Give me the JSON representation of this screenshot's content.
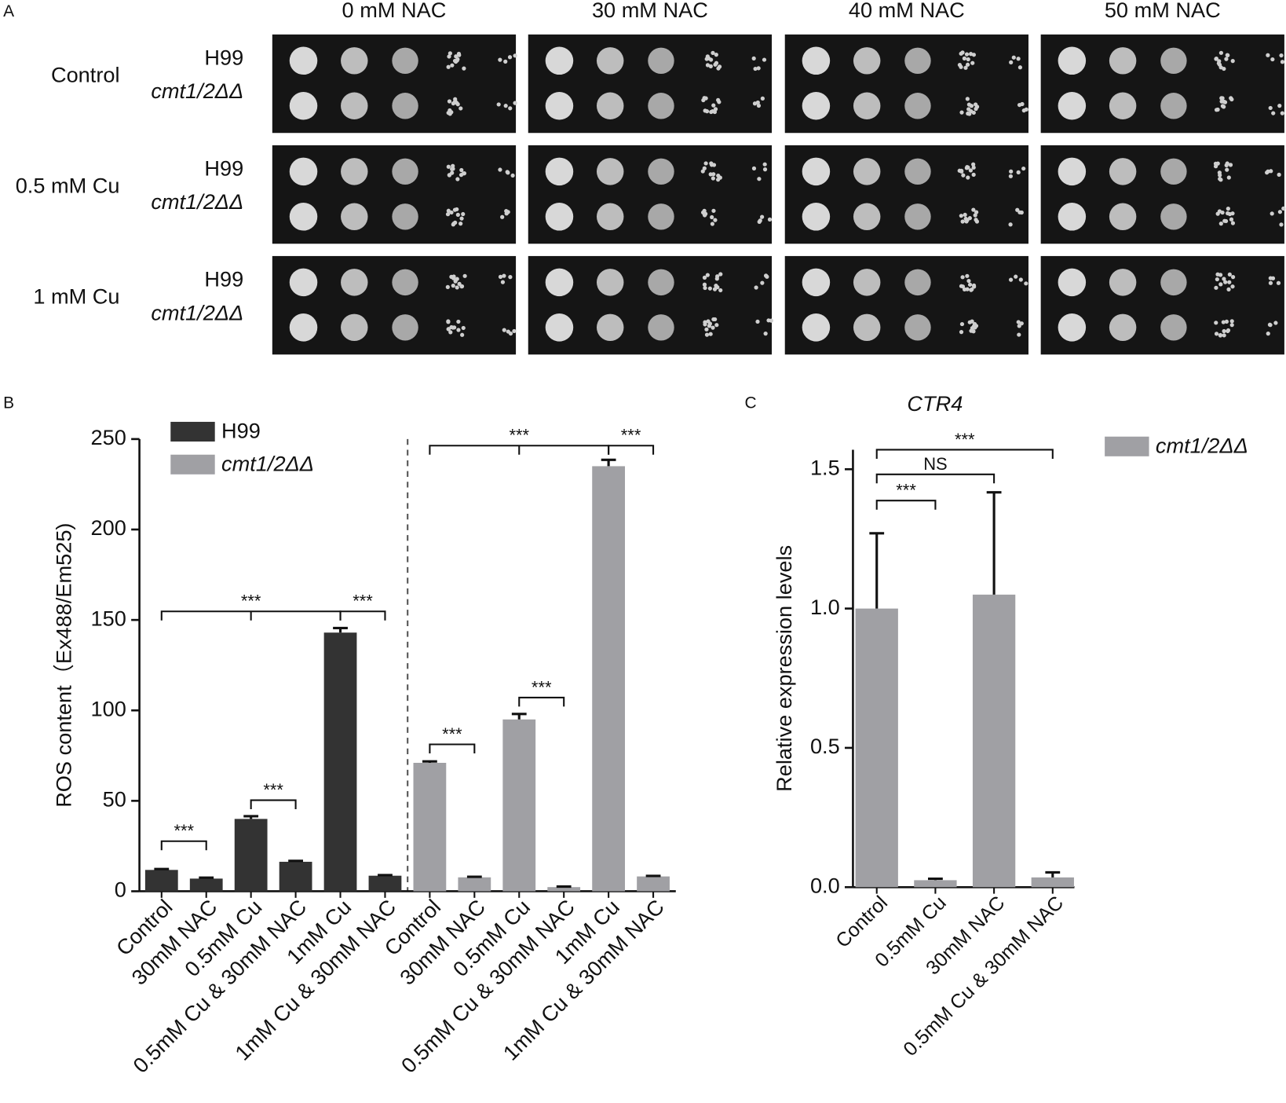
{
  "panel_a": {
    "label": "A",
    "columns": [
      "0 mM NAC",
      "30 mM NAC",
      "40 mM NAC",
      "50 mM NAC"
    ],
    "rows": [
      "Control",
      "0.5 mM Cu",
      "1 mM Cu"
    ],
    "strains": [
      "H99",
      "cmt1/2ΔΔ"
    ]
  },
  "chart_data": [
    {
      "type": "bar",
      "panel_label": "B",
      "ylabel": "ROS content（Ex488/Em525)",
      "categories": [
        "Control",
        "30mM NAC",
        "0.5mM Cu",
        "0.5mM Cu & 30mM NAC",
        "1mM Cu",
        "1mM Cu & 30mM NAC",
        "Control",
        "30mM NAC",
        "0.5mM Cu",
        "0.5mM Cu & 30mM NAC",
        "1mM Cu",
        "1mM Cu & 30mM NAC"
      ],
      "series": [
        {
          "name": "H99",
          "color": "#333333",
          "values": [
            11.8,
            7,
            40,
            16.3,
            143,
            8.6,
            null,
            null,
            null,
            null,
            null,
            null
          ],
          "errors": [
            0.5,
            0.5,
            1.5,
            0.5,
            2.5,
            0.3,
            null,
            null,
            null,
            null,
            null,
            null
          ]
        },
        {
          "name": "cmt1/2ΔΔ",
          "color": "#a0a0a4",
          "values": [
            null,
            null,
            null,
            null,
            null,
            null,
            71,
            7.7,
            95,
            2.3,
            235,
            8.2
          ],
          "errors": [
            null,
            null,
            null,
            null,
            null,
            null,
            0.8,
            0.3,
            3,
            0.3,
            3.5,
            0.3
          ]
        }
      ],
      "ylim": [
        0,
        250
      ],
      "yticks": [
        0,
        50,
        100,
        150,
        200,
        250
      ],
      "annotations": [
        "***",
        "***",
        "***",
        "***",
        "***",
        "***",
        "***",
        "***"
      ]
    },
    {
      "type": "bar",
      "panel_label": "C",
      "title": "CTR4",
      "ylabel": "Relative expression levels",
      "categories": [
        "Control",
        "0.5mM Cu",
        "30mM NAC",
        "0.5mM Cu & 30mM NAC"
      ],
      "series": [
        {
          "name": "cmt1/2ΔΔ",
          "color": "#a0a0a4",
          "values": [
            1.0,
            0.025,
            1.05,
            0.035
          ],
          "errors": [
            0.27,
            0.005,
            0.367,
            0.018
          ]
        }
      ],
      "ylim": [
        0,
        1.57
      ],
      "yticks": [
        {
          "value": 0,
          "label": "0.0"
        },
        {
          "value": 0.5,
          "label": "0.5"
        },
        {
          "value": 1,
          "label": "1.0"
        },
        {
          "value": 1.5,
          "label": "1.5"
        }
      ],
      "annotations": [
        "***",
        "NS",
        "***"
      ]
    }
  ]
}
